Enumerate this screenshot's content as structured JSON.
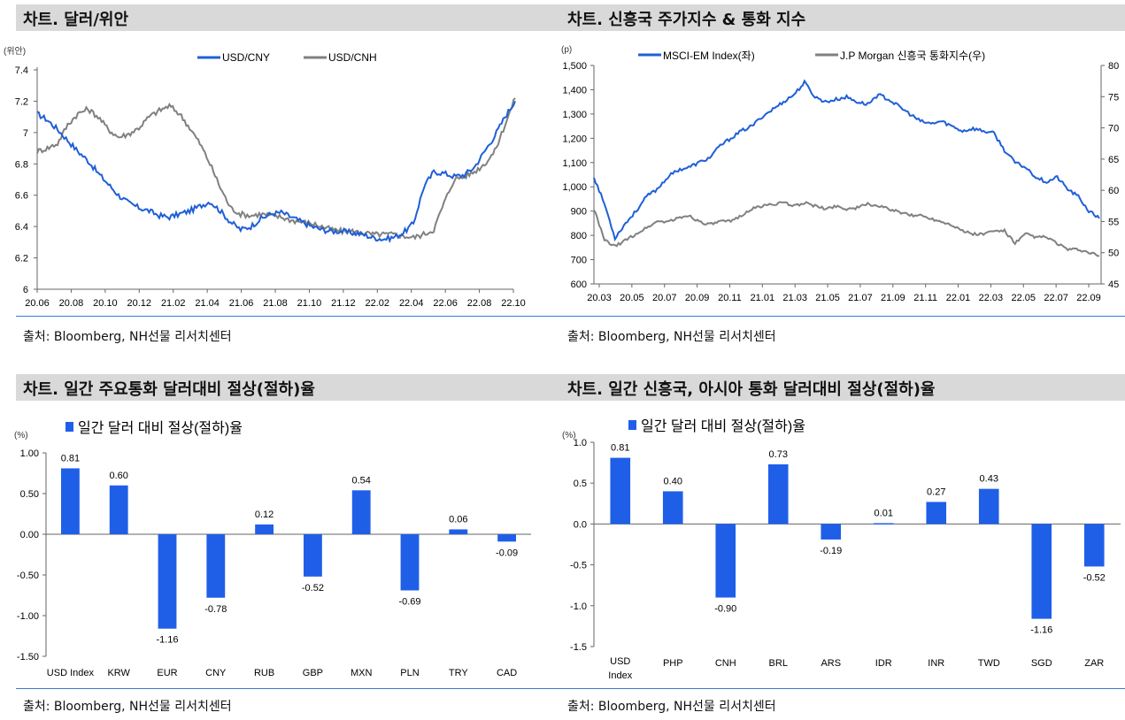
{
  "panels": [
    {
      "title": "차트. 달러/위안",
      "source": "출처: Bloomberg, NH선물 리서치센터"
    },
    {
      "title": "차트. 신흥국 주가지수 & 통화 지수",
      "source": "출처: Bloomberg, NH선물 리서치센터"
    },
    {
      "title": "차트. 일간 주요통화 달러대비 절상(절하)율",
      "source": "출처: Bloomberg, NH선물 리서치센터"
    },
    {
      "title": "차트. 일간 신흥국, 아시아 통화 달러대비 절상(절하)율",
      "source": "출처: Bloomberg, NH선물 리서치센터"
    }
  ],
  "chart_data": [
    {
      "type": "line",
      "unit": "(위안)",
      "x_ticks": [
        "20.06",
        "20.08",
        "20.10",
        "20.12",
        "21.02",
        "21.04",
        "21.06",
        "21.08",
        "21.10",
        "21.12",
        "22.02",
        "22.04",
        "22.06",
        "22.08",
        "22.10"
      ],
      "ylim": [
        6,
        7.4
      ],
      "y_ticks": [
        "6",
        "6.2",
        "6.4",
        "6.6",
        "6.8",
        "7",
        "7.2",
        "7.4"
      ],
      "legend_position": "top",
      "series": [
        {
          "name": "USD/CNY",
          "color": "#1f5fd8",
          "values": [
            7.12,
            7.08,
            7.02,
            6.95,
            6.88,
            6.82,
            6.74,
            6.67,
            6.6,
            6.55,
            6.52,
            6.5,
            6.47,
            6.46,
            6.48,
            6.5,
            6.53,
            6.56,
            6.5,
            6.43,
            6.38,
            6.4,
            6.45,
            6.48,
            6.49,
            6.46,
            6.43,
            6.4,
            6.38,
            6.37,
            6.37,
            6.36,
            6.35,
            6.33,
            6.32,
            6.33,
            6.36,
            6.42,
            6.65,
            6.75,
            6.74,
            6.72,
            6.73,
            6.78,
            6.88,
            6.98,
            7.1,
            7.2
          ]
        },
        {
          "name": "USD/CNH",
          "color": "#808080",
          "values": [
            6.88,
            6.9,
            6.93,
            7.05,
            7.12,
            7.15,
            7.1,
            7.02,
            6.97,
            6.99,
            7.03,
            7.1,
            7.14,
            7.17,
            7.12,
            7.03,
            6.93,
            6.8,
            6.65,
            6.52,
            6.48,
            6.47,
            6.48,
            6.47,
            6.46,
            6.44,
            6.43,
            6.42,
            6.4,
            6.38,
            6.37,
            6.37,
            6.36,
            6.35,
            6.35,
            6.35,
            6.34,
            6.33,
            6.35,
            6.38,
            6.55,
            6.7,
            6.72,
            6.75,
            6.8,
            6.88,
            7.05,
            7.22
          ]
        }
      ]
    },
    {
      "type": "line",
      "unit": "(p)",
      "x_ticks": [
        "20.03",
        "20.05",
        "20.07",
        "20.09",
        "20.11",
        "21.01",
        "21.03",
        "21.05",
        "21.07",
        "21.09",
        "21.11",
        "22.01",
        "22.03",
        "22.05",
        "22.07",
        "22.09"
      ],
      "ylim": [
        600,
        1500
      ],
      "y_ticks": [
        "600",
        "700",
        "800",
        "900",
        "1,000",
        "1,100",
        "1,200",
        "1,300",
        "1,400",
        "1,500"
      ],
      "y2lim": [
        45,
        80
      ],
      "y2_ticks": [
        "45",
        "50",
        "55",
        "60",
        "65",
        "70",
        "75",
        "80"
      ],
      "legend_position": "top",
      "series": [
        {
          "name": "MSCI-EM Index(좌)",
          "axis": "left",
          "color": "#1f5fd8",
          "values": [
            1040,
            930,
            790,
            850,
            900,
            960,
            990,
            1040,
            1070,
            1080,
            1100,
            1120,
            1170,
            1200,
            1230,
            1250,
            1290,
            1320,
            1350,
            1380,
            1430,
            1370,
            1350,
            1360,
            1370,
            1350,
            1340,
            1380,
            1360,
            1330,
            1300,
            1270,
            1260,
            1270,
            1250,
            1230,
            1240,
            1230,
            1220,
            1150,
            1100,
            1080,
            1040,
            1020,
            1040,
            990,
            960,
            900,
            870
          ]
        },
        {
          "name": "J.P Morgan 신흥국 통화지수(우)",
          "axis": "right",
          "color": "#808080",
          "values": [
            57,
            52,
            51,
            52,
            53,
            54,
            55,
            55,
            55.5,
            56,
            55,
            54.5,
            55,
            55,
            56,
            57,
            57.5,
            57.8,
            58,
            57.5,
            58,
            57.5,
            57,
            57.5,
            57,
            57.2,
            57.8,
            57.5,
            57,
            56.5,
            56,
            56,
            55.5,
            55,
            54.5,
            53.5,
            53,
            53,
            53.5,
            53.5,
            51.5,
            53,
            52.5,
            52.5,
            51.5,
            50.5,
            50.5,
            50,
            49.5
          ]
        }
      ]
    },
    {
      "type": "bar",
      "unit": "(%)",
      "series": [
        {
          "name": "일간 달러 대비 절상(절하)율",
          "color": "#1f5fe8"
        }
      ],
      "categories": [
        "USD Index",
        "KRW",
        "EUR",
        "CNY",
        "RUB",
        "GBP",
        "MXN",
        "PLN",
        "TRY",
        "CAD"
      ],
      "values": [
        0.81,
        0.6,
        -1.16,
        -0.78,
        0.12,
        -0.52,
        0.54,
        -0.69,
        0.06,
        -0.09
      ],
      "value_labels": [
        "0.81",
        "0.60",
        "-1.16",
        "-0.78",
        "0.12",
        "-0.52",
        "0.54",
        "-0.69",
        "0.06",
        "-0.09"
      ],
      "ylim": [
        -1.5,
        1.0
      ],
      "y_ticks": [
        "-1.50",
        "-1.00",
        "-0.50",
        "0.00",
        "0.50",
        "1.00"
      ],
      "legend_position": "top"
    },
    {
      "type": "bar",
      "unit": "(%)",
      "series": [
        {
          "name": "일간 달러 대비 절상(절하)율",
          "color": "#1f5fe8"
        }
      ],
      "categories": [
        "USD Index",
        "PHP",
        "CNH",
        "BRL",
        "ARS",
        "IDR",
        "INR",
        "TWD",
        "SGD",
        "ZAR"
      ],
      "values": [
        0.81,
        0.4,
        -0.9,
        0.73,
        -0.19,
        0.01,
        0.27,
        0.43,
        -1.16,
        -0.52
      ],
      "value_labels": [
        "0.81",
        "0.40",
        "-0.90",
        "0.73",
        "-0.19",
        "0.01",
        "0.27",
        "0.43",
        "-1.16",
        "-0.52"
      ],
      "ylim": [
        -1.5,
        1.0
      ],
      "y_ticks": [
        "-1.5",
        "-1.0",
        "-0.5",
        "0.0",
        "0.5",
        "1.0"
      ],
      "legend_position": "top"
    }
  ]
}
